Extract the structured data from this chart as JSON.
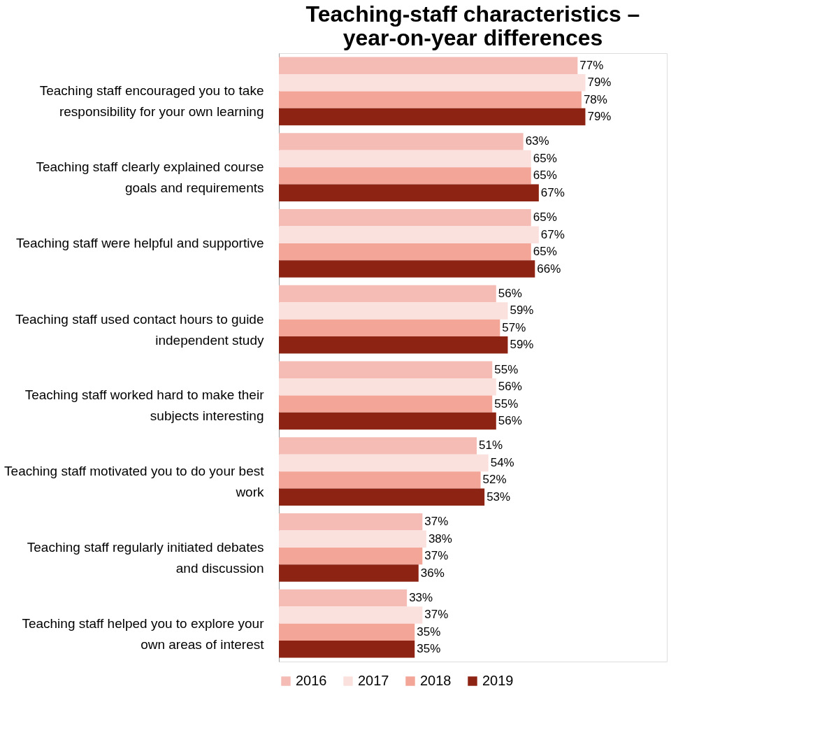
{
  "chart_data": {
    "type": "bar",
    "orientation": "horizontal",
    "title": "Teaching-staff characteristics – year-on-year differences",
    "categories": [
      "Teaching staff encouraged you to take responsibility for your own learning",
      "Teaching staff clearly explained course goals and requirements",
      "Teaching staff were helpful and supportive",
      "Teaching staff used contact hours to guide independent study",
      "Teaching staff worked hard to make their subjects interesting",
      "Teaching staff motivated you to do your best work",
      "Teaching staff regularly initiated debates and discussion",
      "Teaching staff helped you to explore your own areas of interest"
    ],
    "series": [
      {
        "name": "2016",
        "color": "#f4bcb5",
        "values": [
          77,
          63,
          65,
          56,
          55,
          51,
          37,
          33
        ],
        "value_labels": [
          "77%",
          "63%",
          "65%",
          "56%",
          "55%",
          "51%",
          "37%",
          "33%"
        ]
      },
      {
        "name": "2017",
        "color": "#fbe1dd",
        "values": [
          79,
          65,
          67,
          59,
          56,
          54,
          38,
          37
        ],
        "value_labels": [
          "79%",
          "65%",
          "67%",
          "59%",
          "56%",
          "54%",
          "38%",
          "37%"
        ]
      },
      {
        "name": "2018",
        "color": "#f3a597",
        "values": [
          78,
          65,
          65,
          57,
          55,
          52,
          37,
          35
        ],
        "value_labels": [
          "78%",
          "65%",
          "65%",
          "57%",
          "55%",
          "52%",
          "37%",
          "35%"
        ]
      },
      {
        "name": "2019",
        "color": "#8c2313",
        "values": [
          79,
          67,
          66,
          59,
          56,
          53,
          36,
          35
        ],
        "value_labels": [
          "79%",
          "67%",
          "66%",
          "59%",
          "56%",
          "53%",
          "36%",
          "35%"
        ]
      }
    ],
    "xlim": [
      0,
      100
    ],
    "tick_labels": "y",
    "legend": "bottom",
    "grid": false
  }
}
